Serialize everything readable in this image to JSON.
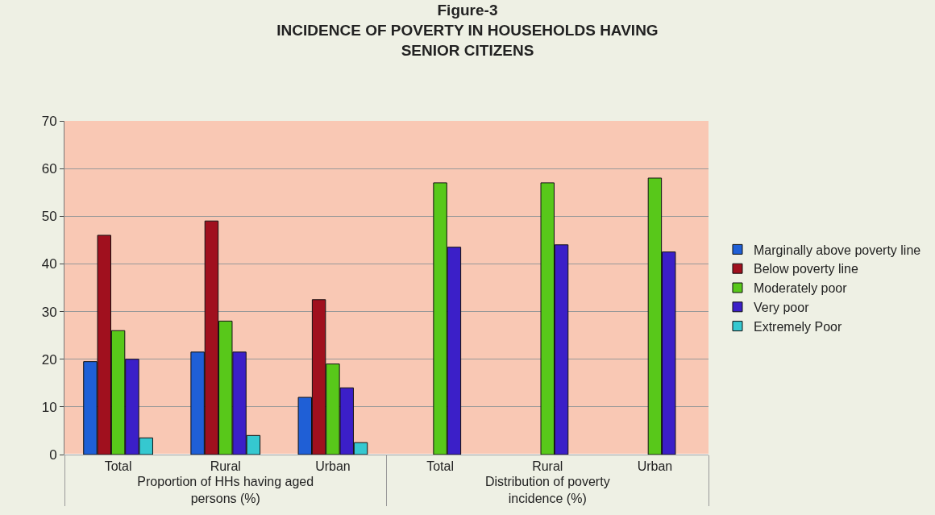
{
  "chart_data": {
    "type": "bar",
    "title": "Figure-3",
    "subtitle": "INCIDENCE OF POVERTY IN HOUSEHOLDS HAVING SENIOR CITIZENS",
    "categories": [
      "Total",
      "Rural",
      "Urban",
      "Total",
      "Rural",
      "Urban"
    ],
    "annotations": [
      "Proportion of HHs having aged persons (%)",
      "Distribution of poverty incidence (%)"
    ],
    "series": [
      {
        "name": "Marginally above poverty line",
        "color": "#1f5fd6",
        "values": [
          19.5,
          21.5,
          12,
          null,
          null,
          null
        ]
      },
      {
        "name": "Below poverty line",
        "color": "#a0101e",
        "values": [
          46,
          49,
          32.5,
          null,
          null,
          null
        ]
      },
      {
        "name": "Moderately poor",
        "color": "#58c81a",
        "values": [
          26,
          28,
          19,
          57,
          57,
          58
        ]
      },
      {
        "name": "Very poor",
        "color": "#3b1fc8",
        "values": [
          20,
          21.5,
          14,
          43.5,
          44,
          42.5
        ]
      },
      {
        "name": "Extremely Poor",
        "color": "#35c8d0",
        "values": [
          3.5,
          4,
          2.5,
          null,
          null,
          null
        ]
      }
    ],
    "ylim": [
      0,
      70
    ],
    "yticks": [
      0,
      10,
      20,
      30,
      40,
      50,
      60,
      70
    ],
    "grid": "y",
    "legend": "right"
  }
}
